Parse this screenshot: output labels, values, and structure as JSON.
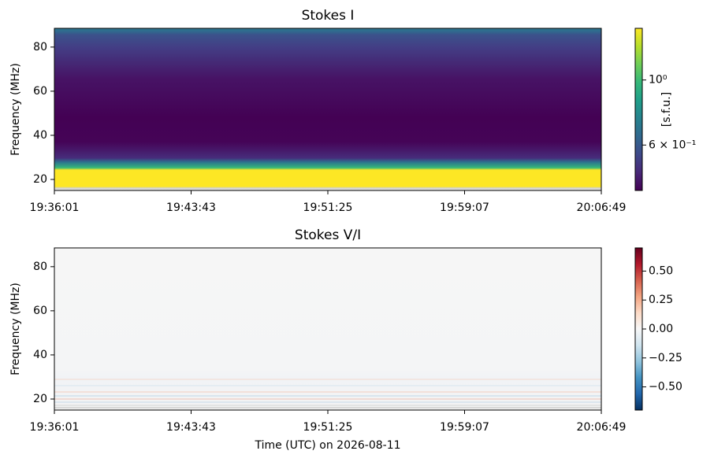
{
  "chart_data": [
    {
      "type": "heatmap",
      "title": "Stokes I",
      "ylabel": "Frequency (MHz)",
      "ylim": [
        15,
        88.5
      ],
      "yticks": [
        20,
        40,
        60,
        80
      ],
      "xlim": [
        "19:36:01",
        "20:06:49"
      ],
      "xticks": [
        "19:36:01",
        "19:43:43",
        "19:51:25",
        "19:59:07",
        "20:06:49"
      ],
      "colorbar": {
        "label": "[s.f.u.]",
        "scale": "log",
        "colormap": "viridis",
        "lim": [
          0.42,
          1.5
        ],
        "ticks": [
          {
            "value": 1,
            "label": "10⁰"
          },
          {
            "value": 0.6,
            "label": "6 × 10⁻¹"
          }
        ]
      }
    },
    {
      "type": "heatmap",
      "title": "Stokes V/I",
      "ylabel": "Frequency (MHz)",
      "xlabel": "Time (UTC) on 2026-08-11",
      "ylim": [
        15,
        88.5
      ],
      "yticks": [
        20,
        40,
        60,
        80
      ],
      "xlim": [
        "19:36:01",
        "20:06:49"
      ],
      "xticks": [
        "19:36:01",
        "19:43:43",
        "19:51:25",
        "19:59:07",
        "20:06:49"
      ],
      "colorbar": {
        "scale": "linear",
        "colormap": "RdBu_r",
        "lim": [
          -0.7,
          0.7
        ],
        "ticks": [
          {
            "value": 0.5,
            "label": "0.50"
          },
          {
            "value": 0.25,
            "label": "0.25"
          },
          {
            "value": 0,
            "label": "0.00"
          },
          {
            "value": -0.25,
            "label": "−0.25"
          },
          {
            "value": -0.5,
            "label": "−0.50"
          }
        ]
      }
    }
  ]
}
